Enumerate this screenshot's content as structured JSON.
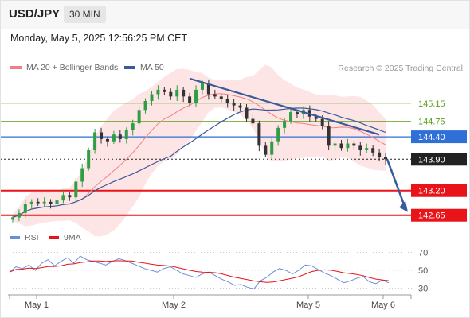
{
  "header": {
    "symbol": "USD/JPY",
    "timeframe": "30 MIN"
  },
  "datetime": "Monday, May 5, 2025 12:56:25 PM CET",
  "legend": {
    "bollinger": "MA 20 + Bollinger Bands",
    "ma50": "MA 50"
  },
  "copyright": "Research © 2025 Trading Central",
  "sub_legend": {
    "rsi": "RSI",
    "ma9": "9MA"
  },
  "colors": {
    "up": "#2f9e44",
    "down": "#333333",
    "bollinger": "#f08080",
    "band_fill": "#fde2e2",
    "ma50": "#3a5a9a",
    "trendline": "#3a5a9a",
    "resistance": "#5a9e1a",
    "support": "#e8141a",
    "pivot": "#2f6fd8",
    "last_price": "#222222",
    "rsi": "#6a8fd8",
    "rsi_ma": "#e8141a"
  },
  "chart_data": {
    "type": "candlestick",
    "ylim": [
      142.45,
      145.75
    ],
    "x_ticks": [
      "May 1",
      "May 2",
      "May 5",
      "May 6"
    ],
    "closes": [
      142.6,
      142.7,
      142.9,
      142.95,
      142.92,
      142.95,
      142.9,
      142.98,
      143.1,
      143.05,
      143.4,
      143.7,
      144.1,
      144.5,
      144.35,
      144.3,
      144.45,
      144.35,
      144.55,
      144.7,
      145.0,
      145.2,
      145.35,
      145.45,
      145.4,
      145.3,
      145.45,
      145.3,
      145.15,
      145.45,
      145.6,
      145.35,
      145.3,
      145.25,
      145.15,
      145.1,
      145.05,
      144.8,
      144.7,
      144.2,
      144.0,
      144.3,
      144.6,
      144.75,
      144.95,
      144.9,
      145.0,
      144.85,
      144.8,
      144.65,
      144.2,
      144.25,
      144.15,
      144.25,
      144.2,
      144.1,
      144.15,
      144.05,
      143.95,
      143.9
    ],
    "levels": {
      "resistance": [
        {
          "label": "145.15",
          "value": 145.15
        },
        {
          "label": "144.75",
          "value": 144.75
        }
      ],
      "pivot": {
        "label": "144.40",
        "value": 144.4
      },
      "last": {
        "label": "143.90",
        "value": 143.9
      },
      "support": [
        {
          "label": "143.20",
          "value": 143.2
        },
        {
          "label": "142.65",
          "value": 142.65
        }
      ]
    },
    "trendline": [
      {
        "x": "May 2",
        "value": 145.7
      },
      {
        "x": "May 6",
        "value": 144.45
      }
    ],
    "forecast_target": 142.65,
    "rsi": {
      "ylim": [
        25,
        75
      ],
      "ticks": [
        "70",
        "50",
        "30"
      ],
      "values": [
        48,
        54,
        52,
        56,
        50,
        58,
        62,
        55,
        60,
        64,
        58,
        66,
        62,
        60,
        58,
        56,
        60,
        63,
        61,
        58,
        55,
        52,
        50,
        48,
        52,
        54,
        50,
        46,
        44,
        42,
        46,
        48,
        44,
        40,
        37,
        33,
        34,
        31,
        29,
        38,
        42,
        48,
        52,
        50,
        46,
        50,
        56,
        55,
        51,
        47,
        44,
        40,
        36,
        38,
        41,
        43,
        37,
        35,
        39,
        36
      ]
    }
  }
}
